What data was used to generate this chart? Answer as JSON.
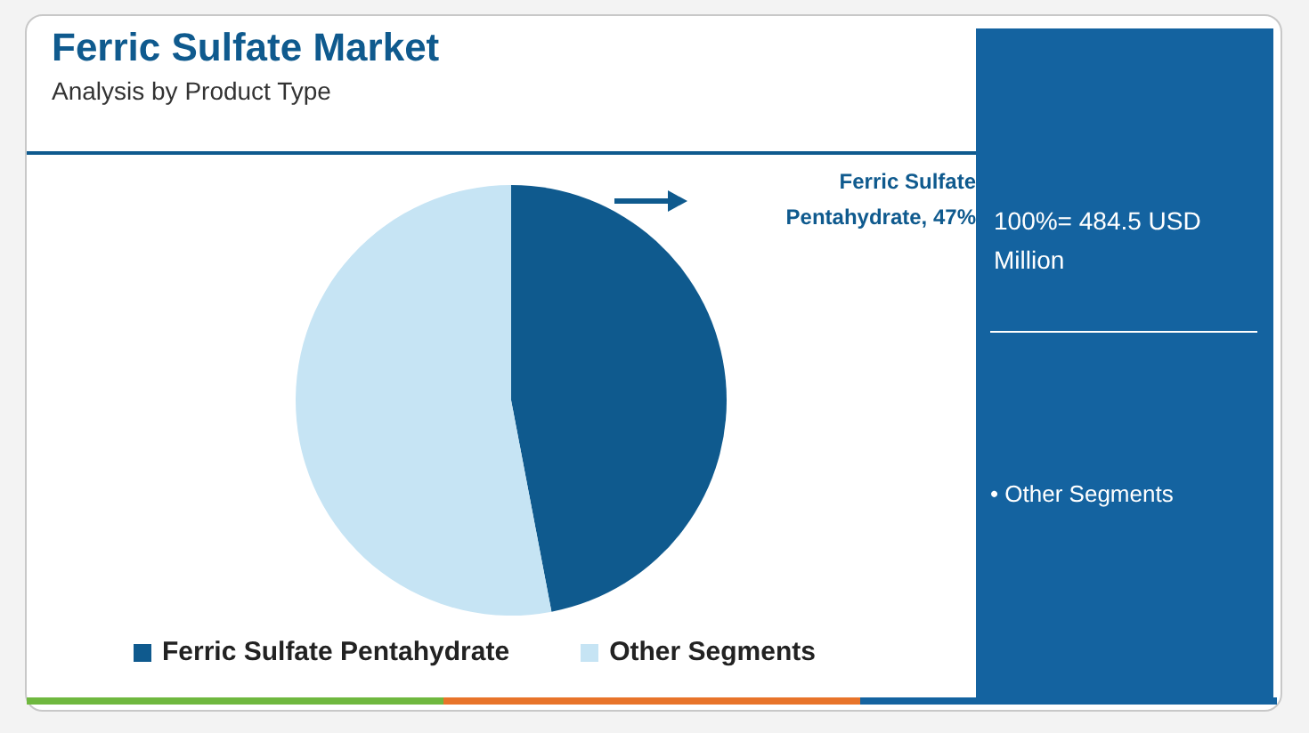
{
  "chart_data": {
    "type": "pie",
    "title": "Ferric Sulfate Market",
    "subtitle": "Analysis by Product Type",
    "categories": [
      "Ferric Sulfate Pentahydrate",
      "Other Segments"
    ],
    "values": [
      47,
      53
    ],
    "colors": [
      "#0f5a8e",
      "#c6e4f4"
    ],
    "value_labels": [
      "Ferric Sulfate Pentahydrate, 47%",
      null
    ],
    "legend": "bottom",
    "annotations": [
      "100%= 484.5 USD Million",
      "• Other Segments"
    ]
  }
}
